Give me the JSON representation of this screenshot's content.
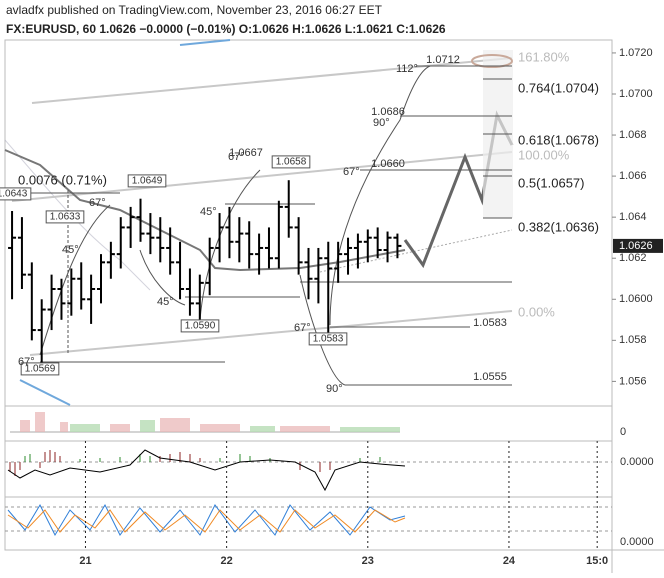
{
  "header": {
    "line1": "avladfx published on TradingView.com, November 23, 2016 06:27 EET",
    "line2": "FX:EURUSD, 60  1.0626 −0.0000 (−0.01%)  O:1.0626 H:1.0626 L:1.0621 C:1.0626"
  },
  "chart_data": {
    "type": "ohlc",
    "x": [
      20.48,
      20.55,
      20.62,
      20.69,
      20.76,
      20.83,
      20.9,
      20.97,
      21.04,
      21.11,
      21.18,
      21.25,
      21.32,
      21.39,
      21.46,
      21.53,
      21.6,
      21.67,
      21.74,
      21.81,
      21.88,
      21.95,
      22.02,
      22.09,
      22.16,
      22.23,
      22.3,
      22.37,
      22.44,
      22.51,
      22.58,
      22.65,
      22.72,
      22.79,
      22.86,
      22.93,
      23.0,
      23.07,
      23.14,
      23.21
    ],
    "open": [
      1.0625,
      1.063,
      1.0612,
      1.0585,
      1.0595,
      1.0605,
      1.0598,
      1.061,
      1.06,
      1.0605,
      1.0618,
      1.0622,
      1.0635,
      1.064,
      1.0632,
      1.063,
      1.0625,
      1.0618,
      1.0605,
      1.0598,
      1.0608,
      1.0625,
      1.0635,
      1.0628,
      1.0632,
      1.0622,
      1.0625,
      1.062,
      1.0645,
      1.0635,
      1.0618,
      1.061,
      1.062,
      1.0615,
      1.0622,
      1.0625,
      1.0628,
      1.063,
      1.0624,
      1.063
    ],
    "high": [
      1.0643,
      1.064,
      1.0618,
      1.06,
      1.0612,
      1.061,
      1.0615,
      1.0618,
      1.0612,
      1.0622,
      1.0628,
      1.064,
      1.0645,
      1.0649,
      1.0642,
      1.064,
      1.0635,
      1.0628,
      1.0615,
      1.0612,
      1.063,
      1.0642,
      1.0645,
      1.064,
      1.0638,
      1.0632,
      1.0635,
      1.0648,
      1.0658,
      1.064,
      1.0625,
      1.0625,
      1.0628,
      1.0628,
      1.063,
      1.0632,
      1.0634,
      1.0635,
      1.0633,
      1.0632
    ],
    "low": [
      1.06,
      1.0605,
      1.058,
      1.0569,
      1.0585,
      1.059,
      1.0592,
      1.0595,
      1.0588,
      1.0598,
      1.061,
      1.0615,
      1.0625,
      1.0628,
      1.0622,
      1.0618,
      1.0612,
      1.06,
      1.0592,
      1.059,
      1.0602,
      1.0618,
      1.062,
      1.0618,
      1.0615,
      1.0612,
      1.0615,
      1.0615,
      1.063,
      1.0612,
      1.06,
      1.0598,
      1.0583,
      1.0608,
      1.0612,
      1.0615,
      1.0618,
      1.062,
      1.0618,
      1.062
    ],
    "close": [
      1.063,
      1.0612,
      1.0585,
      1.0595,
      1.0605,
      1.0598,
      1.061,
      1.06,
      1.0605,
      1.0618,
      1.0622,
      1.0635,
      1.064,
      1.0632,
      1.063,
      1.0625,
      1.0618,
      1.0605,
      1.0598,
      1.0608,
      1.0625,
      1.0635,
      1.0628,
      1.0632,
      1.0622,
      1.0625,
      1.062,
      1.0645,
      1.0635,
      1.0618,
      1.061,
      1.062,
      1.0615,
      1.0622,
      1.0625,
      1.0628,
      1.063,
      1.0624,
      1.063,
      1.0626
    ],
    "color": "#000000",
    "last_price": 1.0626,
    "xlim": [
      20.43,
      24.73
    ],
    "xticks": [
      21,
      22,
      23,
      24,
      {
        "value": 24.625,
        "label": "15:0"
      }
    ],
    "ylim": [
      1.05485,
      1.07263
    ],
    "yticks": [
      {
        "value": 1.072,
        "label": "1.0720"
      },
      {
        "value": 1.07,
        "label": "1.0700"
      },
      1.068,
      1.066,
      1.064,
      1.062,
      {
        "value": 1.06,
        "label": "1.0600"
      },
      1.058,
      1.056
    ],
    "annotations": [
      "1.0643",
      "1.0633",
      "1.0649",
      "1.0590",
      "1.0569",
      "1.0667",
      "1.0658",
      "1.0583",
      "1.0660",
      "1.0686",
      "1.0712",
      "1.0583",
      "1.0555",
      "0.0076 (0.71%)",
      "67°",
      "45°",
      "45°",
      "45°",
      "67°",
      "67°",
      "90°",
      "112°",
      "67°",
      "90°",
      "67°",
      "161.80%",
      "0.764(1.0704)",
      "0.618(1.0678)",
      "100.00%",
      "0.5(1.0657)",
      "0.382(1.0636)",
      "0.00%"
    ],
    "panels": {
      "volume_label": "0",
      "macd_label": "0.0000",
      "stoch_label": "0.0000"
    }
  }
}
